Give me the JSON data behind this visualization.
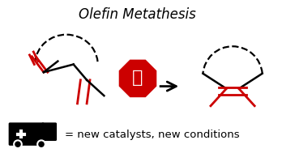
{
  "title": "Olefin Metathesis",
  "title_fontsize": 12,
  "bg_color": "#ffffff",
  "black": "#000000",
  "red": "#cc0000",
  "caption": "= new catalysts, new conditions",
  "caption_fontsize": 9.5,
  "lw_black": 1.8,
  "lw_red": 2.0,
  "lw_dash": 1.6
}
